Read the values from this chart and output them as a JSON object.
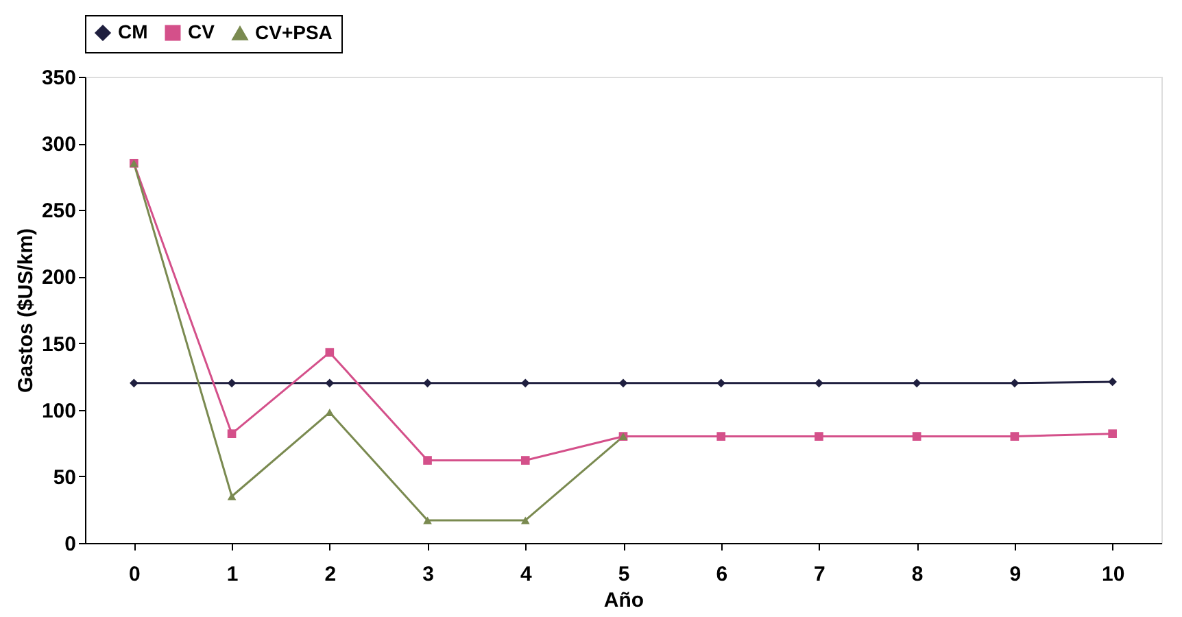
{
  "chart_data": {
    "type": "line",
    "xlabel": "Año",
    "ylabel": "Gastos ($US/km)",
    "categories": [
      "0",
      "1",
      "2",
      "3",
      "4",
      "5",
      "6",
      "7",
      "8",
      "9",
      "10"
    ],
    "series": [
      {
        "name": "CM",
        "color": "#1f1f3f",
        "marker": "diamond",
        "values": [
          120,
          120,
          120,
          120,
          120,
          120,
          120,
          120,
          120,
          120,
          121
        ]
      },
      {
        "name": "CV",
        "color": "#d4508a",
        "marker": "square",
        "values": [
          285,
          82,
          143,
          62,
          62,
          80,
          80,
          80,
          80,
          80,
          82
        ]
      },
      {
        "name": "CV+PSA",
        "color": "#7a8a50",
        "marker": "triangle",
        "values": [
          285,
          35,
          98,
          17,
          17,
          80,
          null,
          null,
          null,
          null,
          null
        ]
      }
    ],
    "ylim": [
      0,
      350
    ],
    "yticks": [
      0,
      50,
      100,
      150,
      200,
      250,
      300,
      350
    ],
    "grid": false,
    "legend": "top",
    "line_style": "solid"
  }
}
